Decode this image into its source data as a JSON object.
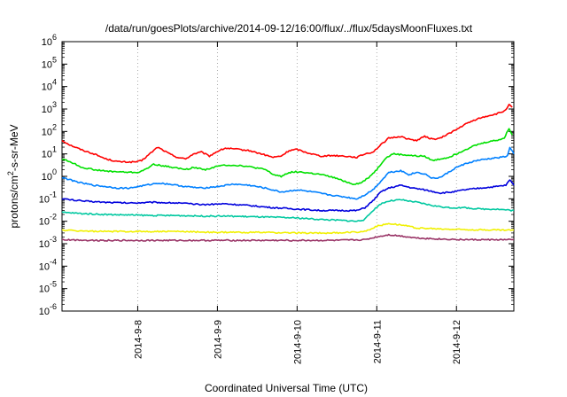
{
  "chart_data": {
    "type": "line",
    "title": "/data/run/goesPlots/archive/2014-09-12/16:00/flux/../flux/5daysMoonFluxes.txt",
    "xlabel": "Coordinated Universal Time (UTC)",
    "ylabel": "protons/cm2-s-sr-MeV",
    "ylabel_parts": {
      "base": "protons/cm",
      "sup": "2",
      "rest": "-s-sr-MeV"
    },
    "y_scale": "log",
    "ylim": [
      1e-06,
      1000000.0
    ],
    "y_ticks": [
      {
        "exp": "-6",
        "value": 1e-06
      },
      {
        "exp": "-5",
        "value": 1e-05
      },
      {
        "exp": "-4",
        "value": 0.0001
      },
      {
        "exp": "-3",
        "value": 0.001
      },
      {
        "exp": "-2",
        "value": 0.01
      },
      {
        "exp": "-1",
        "value": 0.1
      },
      {
        "exp": "0",
        "value": 1
      },
      {
        "exp": "1",
        "value": 10
      },
      {
        "exp": "2",
        "value": 100
      },
      {
        "exp": "3",
        "value": 1000
      },
      {
        "exp": "4",
        "value": 10000.0
      },
      {
        "exp": "5",
        "value": 100000.0
      },
      {
        "exp": "6",
        "value": 1000000.0
      }
    ],
    "y_tick_base": "10",
    "x_range_days": [
      7.05,
      12.72
    ],
    "x_ticks": [
      {
        "label": "2014-9-8",
        "day": 8
      },
      {
        "label": "2014-9-9",
        "day": 9
      },
      {
        "label": "2014-9-10",
        "day": 10
      },
      {
        "label": "2014-9-11",
        "day": 11
      },
      {
        "label": "2014-9-12",
        "day": 12
      }
    ],
    "grid": true,
    "legend": "none",
    "series": [
      {
        "color": "#ff0000",
        "points": [
          [
            7.05,
            40
          ],
          [
            7.15,
            25
          ],
          [
            7.3,
            15
          ],
          [
            7.45,
            10
          ],
          [
            7.6,
            6
          ],
          [
            7.75,
            4.5
          ],
          [
            7.9,
            4.3
          ],
          [
            8.0,
            4.5
          ],
          [
            8.05,
            5
          ],
          [
            8.15,
            10
          ],
          [
            8.25,
            20
          ],
          [
            8.3,
            16
          ],
          [
            8.4,
            10
          ],
          [
            8.5,
            7
          ],
          [
            8.6,
            6
          ],
          [
            8.7,
            10
          ],
          [
            8.8,
            12
          ],
          [
            8.9,
            8
          ],
          [
            9.0,
            13
          ],
          [
            9.1,
            18
          ],
          [
            9.25,
            16
          ],
          [
            9.4,
            14
          ],
          [
            9.55,
            10
          ],
          [
            9.7,
            7
          ],
          [
            9.8,
            8
          ],
          [
            9.9,
            14
          ],
          [
            10.0,
            16
          ],
          [
            10.1,
            12
          ],
          [
            10.3,
            8
          ],
          [
            10.45,
            8.5
          ],
          [
            10.6,
            8
          ],
          [
            10.75,
            7
          ],
          [
            10.85,
            10
          ],
          [
            10.95,
            12
          ],
          [
            11.05,
            25
          ],
          [
            11.15,
            50
          ],
          [
            11.3,
            60
          ],
          [
            11.4,
            45
          ],
          [
            11.5,
            40
          ],
          [
            11.6,
            60
          ],
          [
            11.7,
            45
          ],
          [
            11.8,
            50
          ],
          [
            11.9,
            80
          ],
          [
            12.0,
            120
          ],
          [
            12.1,
            200
          ],
          [
            12.25,
            350
          ],
          [
            12.4,
            500
          ],
          [
            12.5,
            600
          ],
          [
            12.6,
            800
          ],
          [
            12.66,
            1500
          ],
          [
            12.7,
            1200
          ]
        ]
      },
      {
        "color": "#00e000",
        "points": [
          [
            7.05,
            6
          ],
          [
            7.15,
            4.5
          ],
          [
            7.3,
            2.5
          ],
          [
            7.45,
            2
          ],
          [
            7.6,
            1.7
          ],
          [
            7.75,
            1.6
          ],
          [
            7.9,
            1.5
          ],
          [
            8.0,
            1.5
          ],
          [
            8.1,
            2
          ],
          [
            8.2,
            3.5
          ],
          [
            8.3,
            3
          ],
          [
            8.45,
            2.5
          ],
          [
            8.6,
            2
          ],
          [
            8.7,
            2.5
          ],
          [
            8.85,
            2
          ],
          [
            9.0,
            2.8
          ],
          [
            9.1,
            3.2
          ],
          [
            9.3,
            3
          ],
          [
            9.45,
            2.5
          ],
          [
            9.6,
            2
          ],
          [
            9.7,
            1.2
          ],
          [
            9.8,
            1
          ],
          [
            9.9,
            1.5
          ],
          [
            10.0,
            1.6
          ],
          [
            10.15,
            1.4
          ],
          [
            10.3,
            1.2
          ],
          [
            10.45,
            0.9
          ],
          [
            10.6,
            0.6
          ],
          [
            10.7,
            0.45
          ],
          [
            10.8,
            0.5
          ],
          [
            10.9,
            0.9
          ],
          [
            11.0,
            2
          ],
          [
            11.1,
            6
          ],
          [
            11.2,
            10
          ],
          [
            11.35,
            9
          ],
          [
            11.5,
            8
          ],
          [
            11.6,
            8
          ],
          [
            11.7,
            5
          ],
          [
            11.8,
            6
          ],
          [
            11.9,
            7
          ],
          [
            12.0,
            10
          ],
          [
            12.1,
            15
          ],
          [
            12.25,
            25
          ],
          [
            12.4,
            35
          ],
          [
            12.5,
            40
          ],
          [
            12.6,
            50
          ],
          [
            12.66,
            140
          ],
          [
            12.7,
            70
          ]
        ]
      },
      {
        "color": "#0080ff",
        "points": [
          [
            7.05,
            0.9
          ],
          [
            7.15,
            0.7
          ],
          [
            7.3,
            0.5
          ],
          [
            7.45,
            0.4
          ],
          [
            7.6,
            0.35
          ],
          [
            7.75,
            0.3
          ],
          [
            7.9,
            0.3
          ],
          [
            8.0,
            0.35
          ],
          [
            8.1,
            0.4
          ],
          [
            8.25,
            0.5
          ],
          [
            8.4,
            0.45
          ],
          [
            8.6,
            0.35
          ],
          [
            8.8,
            0.3
          ],
          [
            9.0,
            0.35
          ],
          [
            9.2,
            0.45
          ],
          [
            9.4,
            0.4
          ],
          [
            9.6,
            0.3
          ],
          [
            9.8,
            0.2
          ],
          [
            10.0,
            0.25
          ],
          [
            10.2,
            0.2
          ],
          [
            10.4,
            0.15
          ],
          [
            10.6,
            0.12
          ],
          [
            10.75,
            0.1
          ],
          [
            10.85,
            0.15
          ],
          [
            10.95,
            0.25
          ],
          [
            11.05,
            0.6
          ],
          [
            11.15,
            1.5
          ],
          [
            11.3,
            1.8
          ],
          [
            11.4,
            1.2
          ],
          [
            11.5,
            1.5
          ],
          [
            11.6,
            1.3
          ],
          [
            11.7,
            0.8
          ],
          [
            11.8,
            0.9
          ],
          [
            11.9,
            1.5
          ],
          [
            12.0,
            2.5
          ],
          [
            12.1,
            3.5
          ],
          [
            12.25,
            5
          ],
          [
            12.4,
            6
          ],
          [
            12.55,
            7
          ],
          [
            12.64,
            8
          ],
          [
            12.67,
            20
          ],
          [
            12.72,
            10
          ]
        ]
      },
      {
        "color": "#0000dd",
        "points": [
          [
            7.05,
            0.1
          ],
          [
            7.3,
            0.08
          ],
          [
            7.6,
            0.07
          ],
          [
            7.9,
            0.065
          ],
          [
            8.2,
            0.07
          ],
          [
            8.5,
            0.065
          ],
          [
            8.8,
            0.055
          ],
          [
            9.1,
            0.06
          ],
          [
            9.4,
            0.05
          ],
          [
            9.7,
            0.04
          ],
          [
            10.0,
            0.035
          ],
          [
            10.3,
            0.03
          ],
          [
            10.55,
            0.03
          ],
          [
            10.75,
            0.03
          ],
          [
            10.85,
            0.04
          ],
          [
            10.95,
            0.08
          ],
          [
            11.05,
            0.2
          ],
          [
            11.15,
            0.3
          ],
          [
            11.3,
            0.4
          ],
          [
            11.45,
            0.3
          ],
          [
            11.6,
            0.25
          ],
          [
            11.8,
            0.18
          ],
          [
            11.95,
            0.2
          ],
          [
            12.1,
            0.25
          ],
          [
            12.3,
            0.3
          ],
          [
            12.5,
            0.35
          ],
          [
            12.62,
            0.4
          ],
          [
            12.67,
            0.7
          ],
          [
            12.72,
            0.4
          ]
        ]
      },
      {
        "color": "#00c8a0",
        "points": [
          [
            7.05,
            0.025
          ],
          [
            7.3,
            0.022
          ],
          [
            7.6,
            0.02
          ],
          [
            7.9,
            0.019
          ],
          [
            8.2,
            0.018
          ],
          [
            8.5,
            0.018
          ],
          [
            8.8,
            0.017
          ],
          [
            9.1,
            0.017
          ],
          [
            9.4,
            0.016
          ],
          [
            9.7,
            0.015
          ],
          [
            10.0,
            0.014
          ],
          [
            10.3,
            0.012
          ],
          [
            10.55,
            0.011
          ],
          [
            10.75,
            0.01
          ],
          [
            10.85,
            0.012
          ],
          [
            10.95,
            0.03
          ],
          [
            11.05,
            0.06
          ],
          [
            11.15,
            0.08
          ],
          [
            11.3,
            0.09
          ],
          [
            11.5,
            0.07
          ],
          [
            11.7,
            0.05
          ],
          [
            11.9,
            0.04
          ],
          [
            12.1,
            0.04
          ],
          [
            12.3,
            0.035
          ],
          [
            12.5,
            0.035
          ],
          [
            12.72,
            0.03
          ]
        ]
      },
      {
        "color": "#f0f000",
        "points": [
          [
            7.05,
            0.004
          ],
          [
            7.5,
            0.0035
          ],
          [
            8.0,
            0.0035
          ],
          [
            8.5,
            0.0035
          ],
          [
            9.0,
            0.0032
          ],
          [
            9.5,
            0.0032
          ],
          [
            10.0,
            0.003
          ],
          [
            10.5,
            0.003
          ],
          [
            10.85,
            0.0035
          ],
          [
            11.0,
            0.006
          ],
          [
            11.15,
            0.008
          ],
          [
            11.3,
            0.007
          ],
          [
            11.5,
            0.005
          ],
          [
            11.8,
            0.0045
          ],
          [
            12.2,
            0.0042
          ],
          [
            12.72,
            0.004
          ]
        ]
      },
      {
        "color": "#993366",
        "points": [
          [
            7.05,
            0.0015
          ],
          [
            7.5,
            0.0014
          ],
          [
            8.0,
            0.0014
          ],
          [
            8.5,
            0.0014
          ],
          [
            9.0,
            0.0014
          ],
          [
            9.5,
            0.0014
          ],
          [
            10.0,
            0.0014
          ],
          [
            10.5,
            0.0014
          ],
          [
            10.85,
            0.0015
          ],
          [
            11.0,
            0.002
          ],
          [
            11.15,
            0.0025
          ],
          [
            11.3,
            0.0022
          ],
          [
            11.5,
            0.0018
          ],
          [
            11.8,
            0.0016
          ],
          [
            12.2,
            0.0015
          ],
          [
            12.72,
            0.0015
          ]
        ]
      }
    ]
  }
}
